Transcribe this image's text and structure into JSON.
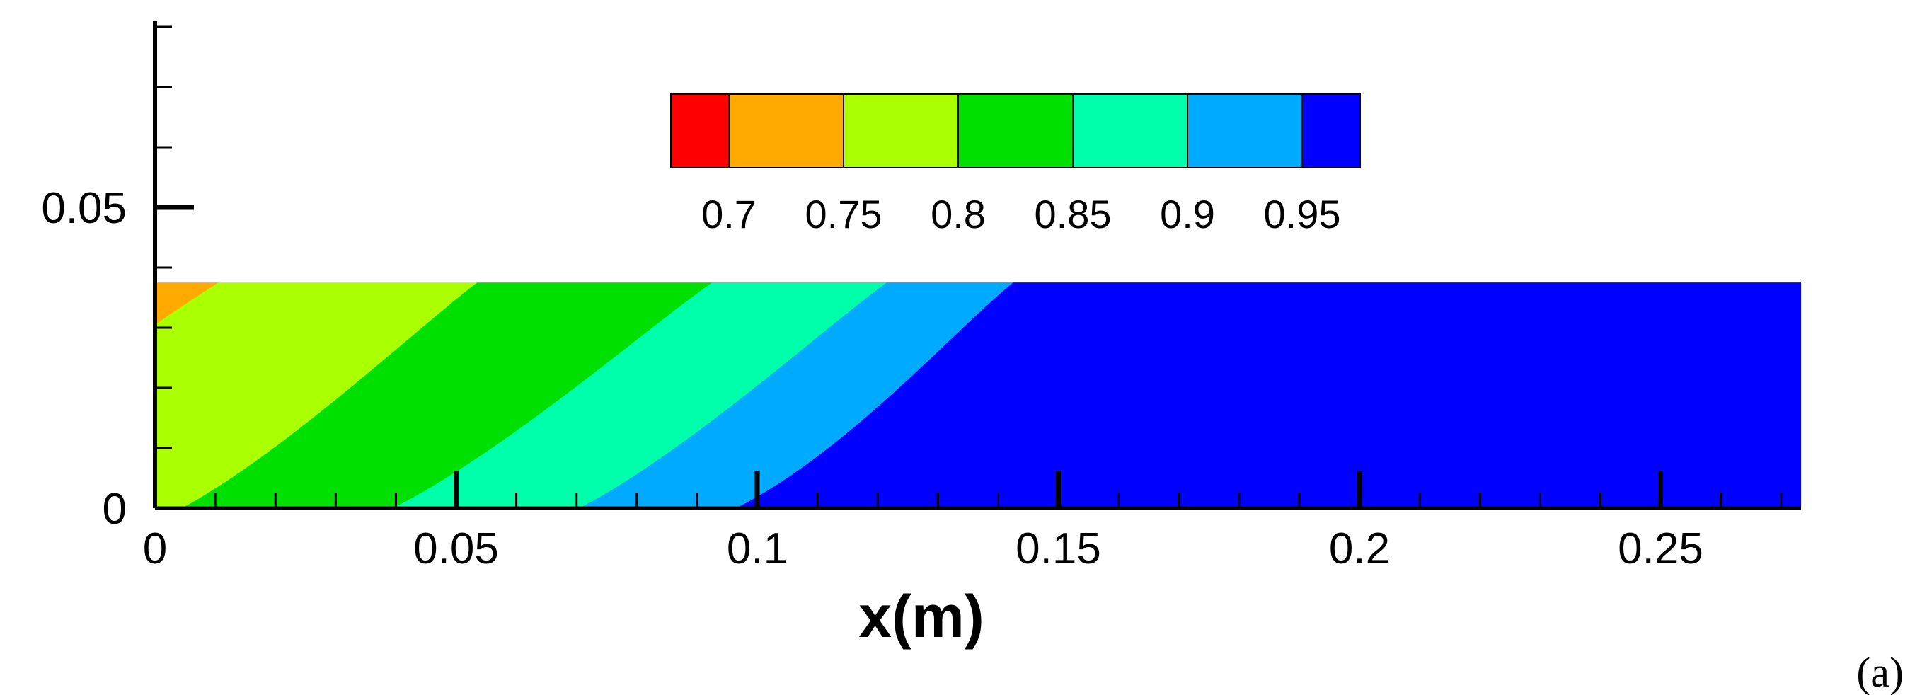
{
  "chart_data": {
    "type": "heatmap",
    "xlabel": "x(m)",
    "ylabel": "",
    "xlim": [
      0,
      0.272
    ],
    "ylim": [
      0,
      0.08
    ],
    "x_ticks": [
      "0",
      "0.05",
      "0.1",
      "0.15",
      "0.2",
      "0.25"
    ],
    "y_ticks": [
      "0",
      "0.05"
    ],
    "domain_height": 0.0375,
    "colorbar": {
      "levels": [
        "0.7",
        "0.75",
        "0.8",
        "0.85",
        "0.9",
        "0.95"
      ],
      "colors": [
        "#ff0000",
        "#ffaa00",
        "#aaff00",
        "#00e000",
        "#00ffaa",
        "#00aaff",
        "#0000ff"
      ]
    },
    "contour_boundaries": [
      {
        "level": 0.75,
        "bottom_x": null,
        "top_x": 0.0105,
        "left_y": 0.0305
      },
      {
        "level": 0.8,
        "bottom_x": 0.0045,
        "top_x": 0.0535
      },
      {
        "level": 0.85,
        "bottom_x": 0.0395,
        "top_x": 0.0925
      },
      {
        "level": 0.9,
        "bottom_x": 0.0705,
        "top_x": 0.1215
      },
      {
        "level": 0.95,
        "bottom_x": 0.0965,
        "top_x": 0.1425
      }
    ],
    "panel_label": "(a)"
  }
}
